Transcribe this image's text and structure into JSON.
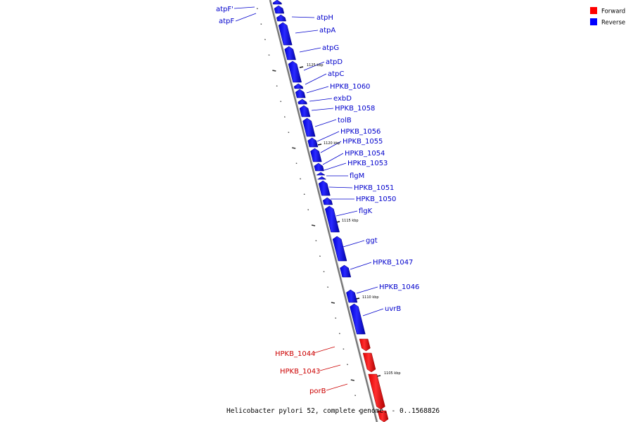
{
  "caption": "Helicobacter pylori 52, complete genome. - 0..1568826",
  "legend": [
    {
      "label": "Forward",
      "color": "#ff0000"
    },
    {
      "label": "Reverse",
      "color": "#0000ff"
    }
  ],
  "colors": {
    "forward": "#ff0000",
    "reverse": "#0000ff",
    "forward_label": "#cc0000",
    "reverse_label": "#0000cc",
    "backbone": "#888888"
  },
  "ticks": [
    "1125 kbp",
    "1120 kbp",
    "1115 kbp",
    "1110 kbp",
    "1105 kbp"
  ],
  "genes": [
    {
      "name": "atpF'",
      "strand": "reverse"
    },
    {
      "name": "atpF",
      "strand": "reverse"
    },
    {
      "name": "atpH",
      "strand": "reverse"
    },
    {
      "name": "atpA",
      "strand": "reverse"
    },
    {
      "name": "atpG",
      "strand": "reverse"
    },
    {
      "name": "atpD",
      "strand": "reverse"
    },
    {
      "name": "atpC",
      "strand": "reverse"
    },
    {
      "name": "HPKB_1060",
      "strand": "reverse"
    },
    {
      "name": "exbD",
      "strand": "reverse"
    },
    {
      "name": "HPKB_1058",
      "strand": "reverse"
    },
    {
      "name": "tolB",
      "strand": "reverse"
    },
    {
      "name": "HPKB_1056",
      "strand": "reverse"
    },
    {
      "name": "HPKB_1055",
      "strand": "reverse"
    },
    {
      "name": "HPKB_1054",
      "strand": "reverse"
    },
    {
      "name": "HPKB_1053",
      "strand": "reverse"
    },
    {
      "name": "flgM",
      "strand": "reverse"
    },
    {
      "name": "HPKB_1051",
      "strand": "reverse"
    },
    {
      "name": "HPKB_1050",
      "strand": "reverse"
    },
    {
      "name": "flgK",
      "strand": "reverse"
    },
    {
      "name": "ggt",
      "strand": "reverse"
    },
    {
      "name": "HPKB_1047",
      "strand": "reverse"
    },
    {
      "name": "HPKB_1046",
      "strand": "reverse"
    },
    {
      "name": "uvrB",
      "strand": "reverse"
    },
    {
      "name": "HPKB_1044",
      "strand": "forward"
    },
    {
      "name": "HPKB_1043",
      "strand": "forward"
    },
    {
      "name": "porB",
      "strand": "forward"
    }
  ]
}
